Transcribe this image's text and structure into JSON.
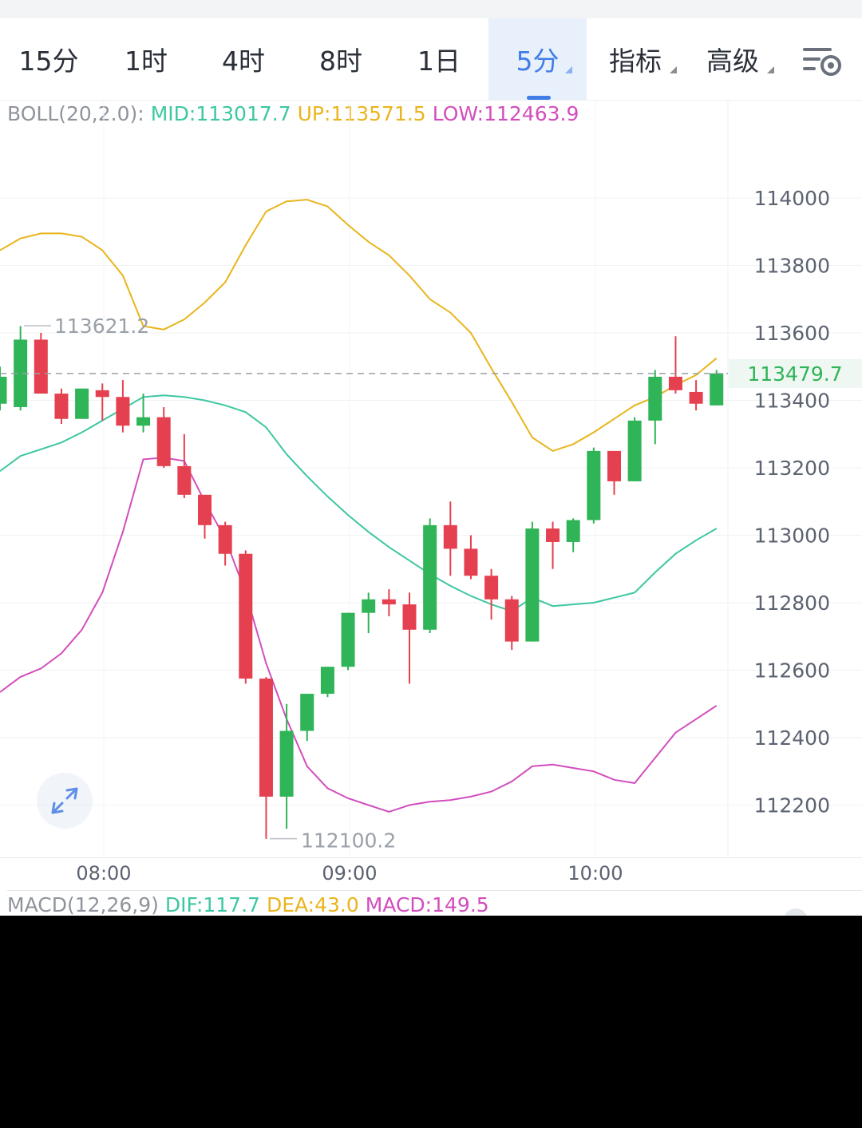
{
  "tabs": [
    {
      "label": "15分",
      "active": false,
      "caret": false
    },
    {
      "label": "1时",
      "active": false,
      "caret": false
    },
    {
      "label": "4时",
      "active": false,
      "caret": false
    },
    {
      "label": "8时",
      "active": false,
      "caret": false
    },
    {
      "label": "1日",
      "active": false,
      "caret": false
    },
    {
      "label": "5分",
      "active": true,
      "caret": true
    },
    {
      "label": "指标",
      "active": false,
      "caret": true
    },
    {
      "label": "高级",
      "active": false,
      "caret": true
    }
  ],
  "settings_icon": "chart-settings-icon",
  "boll": {
    "label": "BOLL(20,2.0):",
    "mid": "MID:113017.7",
    "up": "UP:113571.5",
    "low": "LOW:112463.9",
    "colors": {
      "label": "#8f949c",
      "mid": "#3dc7a2",
      "up": "#e9b51d",
      "low": "#d24ebd"
    }
  },
  "macd": {
    "label": "MACD(12,26,9)",
    "dif": "DIF:117.7",
    "dea": "DEA:43.0",
    "macd": "MACD:149.5"
  },
  "colors": {
    "up": "#2fb457",
    "down": "#e5404f",
    "price": "#2fb457",
    "grid": "#eef0f3",
    "axis_text": "#5b6270"
  },
  "chart_data": {
    "type": "candlestick",
    "y_ticks": [
      "114000",
      "113800",
      "113600",
      "113400",
      "113200",
      "113000",
      "112800",
      "112600",
      "112400",
      "112200"
    ],
    "x_ticks": [
      "08:00",
      "09:00",
      "10:00"
    ],
    "current_price": "113479.7",
    "high_label": "113621.2",
    "low_label": "112100.2",
    "candles": [
      {
        "o": 113390,
        "h": 113500,
        "l": 113370,
        "c": 113470
      },
      {
        "o": 113380,
        "h": 113620,
        "l": 113370,
        "c": 113580
      },
      {
        "o": 113580,
        "h": 113600,
        "l": 113420,
        "c": 113420
      },
      {
        "o": 113420,
        "h": 113435,
        "l": 113330,
        "c": 113345
      },
      {
        "o": 113345,
        "h": 113435,
        "l": 113345,
        "c": 113435
      },
      {
        "o": 113430,
        "h": 113450,
        "l": 113340,
        "c": 113410
      },
      {
        "o": 113410,
        "h": 113460,
        "l": 113305,
        "c": 113325
      },
      {
        "o": 113325,
        "h": 113420,
        "l": 113305,
        "c": 113350
      },
      {
        "o": 113350,
        "h": 113380,
        "l": 113200,
        "c": 113205
      },
      {
        "o": 113205,
        "h": 113300,
        "l": 113110,
        "c": 113120
      },
      {
        "o": 113120,
        "h": 113110,
        "l": 112990,
        "c": 113030
      },
      {
        "o": 113030,
        "h": 113040,
        "l": 112910,
        "c": 112945
      },
      {
        "o": 112945,
        "h": 112955,
        "l": 112560,
        "c": 112575
      },
      {
        "o": 112575,
        "h": 112580,
        "l": 112100,
        "c": 112225
      },
      {
        "o": 112225,
        "h": 112500,
        "l": 112130,
        "c": 112420
      },
      {
        "o": 112420,
        "h": 112530,
        "l": 112390,
        "c": 112530
      },
      {
        "o": 112530,
        "h": 112610,
        "l": 112520,
        "c": 112610
      },
      {
        "o": 112610,
        "h": 112770,
        "l": 112600,
        "c": 112770
      },
      {
        "o": 112770,
        "h": 112830,
        "l": 112710,
        "c": 112810
      },
      {
        "o": 112810,
        "h": 112840,
        "l": 112760,
        "c": 112795
      },
      {
        "o": 112795,
        "h": 112830,
        "l": 112560,
        "c": 112720
      },
      {
        "o": 112720,
        "h": 113050,
        "l": 112710,
        "c": 113030
      },
      {
        "o": 113030,
        "h": 113100,
        "l": 112880,
        "c": 112960
      },
      {
        "o": 112960,
        "h": 113000,
        "l": 112870,
        "c": 112880
      },
      {
        "o": 112880,
        "h": 112900,
        "l": 112750,
        "c": 112810
      },
      {
        "o": 112810,
        "h": 112820,
        "l": 112660,
        "c": 112685
      },
      {
        "o": 112685,
        "h": 113040,
        "l": 112685,
        "c": 113020
      },
      {
        "o": 113020,
        "h": 113040,
        "l": 112900,
        "c": 112980
      },
      {
        "o": 112980,
        "h": 113050,
        "l": 112950,
        "c": 113045
      },
      {
        "o": 113045,
        "h": 113260,
        "l": 113035,
        "c": 113250
      },
      {
        "o": 113250,
        "h": 113250,
        "l": 113120,
        "c": 113160
      },
      {
        "o": 113160,
        "h": 113350,
        "l": 113160,
        "c": 113340
      },
      {
        "o": 113340,
        "h": 113490,
        "l": 113270,
        "c": 113470
      },
      {
        "o": 113470,
        "h": 113590,
        "l": 113420,
        "c": 113430
      },
      {
        "o": 113425,
        "h": 113460,
        "l": 113370,
        "c": 113390
      },
      {
        "o": 113385,
        "h": 113490,
        "l": 113385,
        "c": 113480
      }
    ],
    "boll_mid": [
      113190,
      113235,
      113255,
      113275,
      113305,
      113340,
      113375,
      113410,
      113415,
      113410,
      113400,
      113385,
      113365,
      113320,
      113240,
      113175,
      113115,
      113060,
      113010,
      112965,
      112925,
      112885,
      112850,
      112820,
      112795,
      112775,
      112815,
      112790,
      112795,
      112800,
      112815,
      112830,
      112890,
      112945,
      112985,
      113020
    ],
    "boll_up": [
      113845,
      113880,
      113895,
      113895,
      113885,
      113845,
      113770,
      113620,
      113610,
      113640,
      113690,
      113750,
      113860,
      113960,
      113990,
      113995,
      113975,
      113920,
      113870,
      113830,
      113770,
      113700,
      113660,
      113600,
      113495,
      113395,
      113290,
      113250,
      113270,
      113305,
      113345,
      113385,
      113410,
      113445,
      113475,
      113525
    ],
    "boll_low": [
      112535,
      112580,
      112605,
      112650,
      112720,
      112830,
      113010,
      113225,
      113230,
      113220,
      113100,
      112990,
      112830,
      112620,
      112455,
      112315,
      112250,
      112220,
      112200,
      112180,
      112200,
      112210,
      112215,
      112225,
      112240,
      112270,
      112315,
      112320,
      112310,
      112300,
      112275,
      112265,
      112340,
      112415,
      112455,
      112495
    ]
  }
}
